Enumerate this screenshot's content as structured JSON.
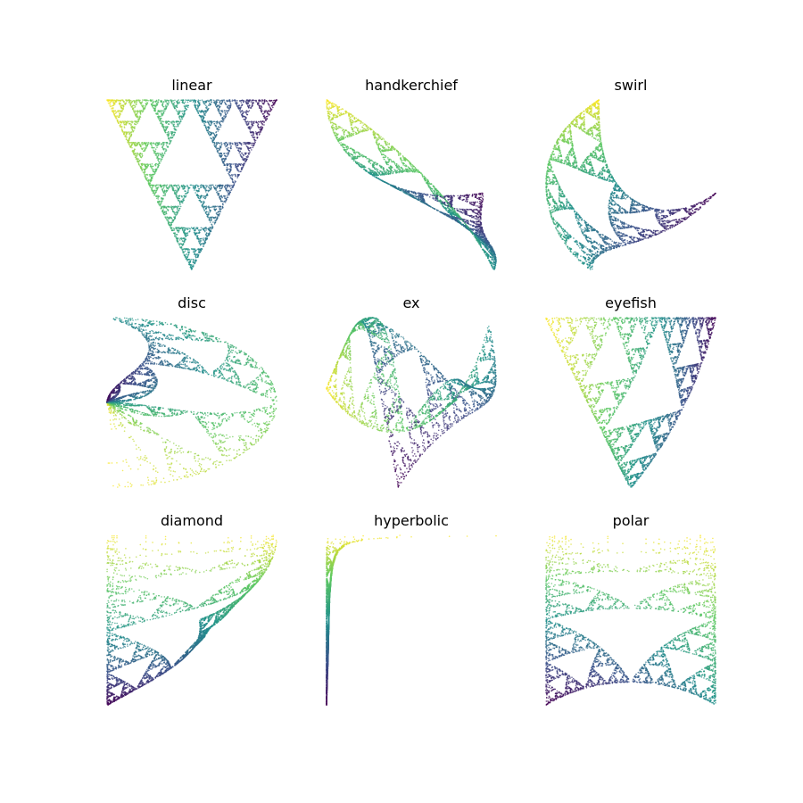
{
  "chart_data": [
    {
      "type": "scatter",
      "title": "linear"
    },
    {
      "type": "scatter",
      "title": "handkerchief"
    },
    {
      "type": "scatter",
      "title": "swirl"
    },
    {
      "type": "scatter",
      "title": "disc"
    },
    {
      "type": "scatter",
      "title": "ex"
    },
    {
      "type": "scatter",
      "title": "eyefish"
    },
    {
      "type": "scatter",
      "title": "diamond"
    },
    {
      "type": "scatter",
      "title": "hyperbolic"
    },
    {
      "type": "scatter",
      "title": "polar"
    }
  ],
  "colormap": [
    "#440154",
    "#3b528b",
    "#21918c",
    "#5ec962",
    "#fde725"
  ],
  "axes_visible": false
}
